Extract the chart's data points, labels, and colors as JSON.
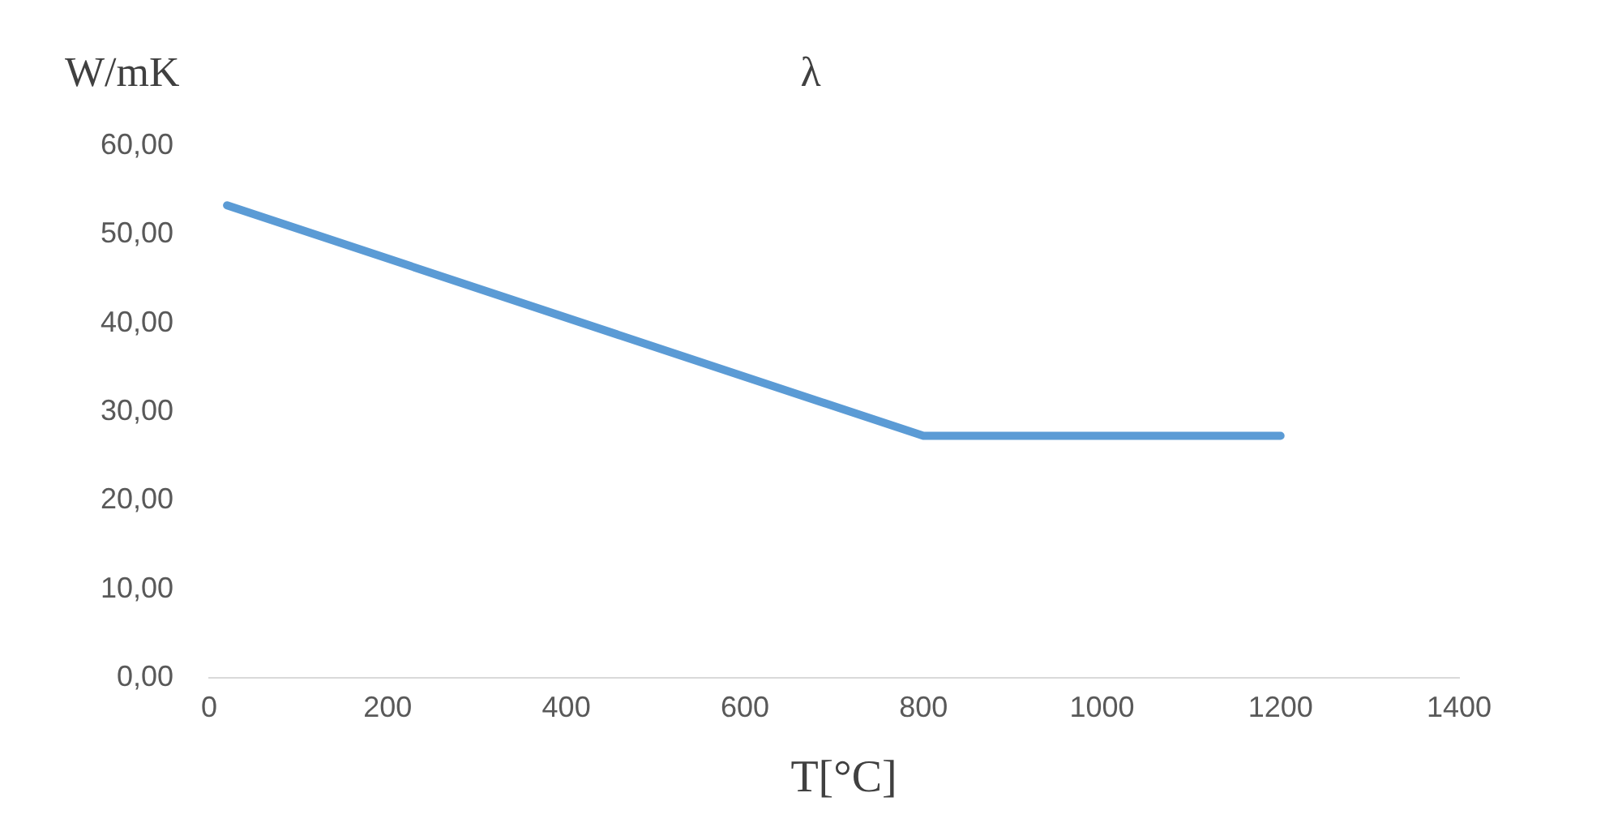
{
  "chart_data": {
    "type": "line",
    "title": "λ",
    "ylabel": "W/mK",
    "xlabel": "T[°C]",
    "x": [
      20,
      800,
      1200
    ],
    "series": [
      {
        "color": "#5b9bd5",
        "values": [
          53.3,
          27.3,
          27.3
        ]
      }
    ],
    "xlim": [
      0,
      1400
    ],
    "xticks": [
      0,
      200,
      400,
      600,
      800,
      1000,
      1200,
      1400
    ],
    "ylim": [
      0,
      60
    ],
    "yticks": [
      {
        "value": 0,
        "label": "0,00"
      },
      {
        "value": 10,
        "label": "10,00"
      },
      {
        "value": 20,
        "label": "20,00"
      },
      {
        "value": 30,
        "label": "30,00"
      },
      {
        "value": 40,
        "label": "40,00"
      },
      {
        "value": 50,
        "label": "50,00"
      },
      {
        "value": 60,
        "label": "60,00"
      }
    ],
    "grid": false,
    "legend": false,
    "marker": "none",
    "line_style": "solid"
  }
}
